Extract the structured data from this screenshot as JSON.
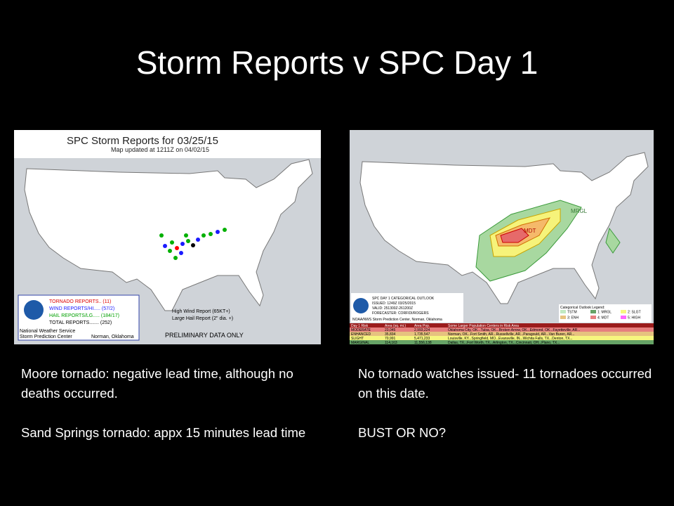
{
  "title": "Storm Reports v SPC Day 1",
  "left_panel": {
    "map": {
      "title": "SPC Storm Reports for 03/25/15",
      "subtitle": "Map updated at 1211Z on 04/02/15",
      "legend": [
        "TORNADO REPORTS.. (11)",
        "WIND REPORTS/HI..... (57/2)",
        "HAIL REPORTS/LG..... (184/17)",
        "TOTAL REPORTS....... (252)"
      ],
      "key": [
        "High Wind Report (65KT+)",
        "Large Hail Report (2\" dia. +)"
      ],
      "footer": [
        "National Weather Service",
        "Storm Prediction Center",
        "Norman, Oklahoma",
        "PRELIMINARY DATA ONLY"
      ]
    },
    "notes": [
      "Moore tornado: negative lead time, although no deaths occurred.",
      "Sand Springs tornado: appx 15 minutes lead time"
    ]
  },
  "right_panel": {
    "map": {
      "header": [
        "SPC DAY 1 CATEGORICAL OUTLOOK",
        "ISSUED: 1249Z 03/25/2015",
        "VALID: 251300Z-261200Z",
        "FORECASTER: CORFIDI/ROGERS",
        "NOAA/NWS Storm Prediction Center, Norman, Oklahoma"
      ],
      "labels": [
        "MRGL",
        "MDT"
      ],
      "legend_title": "Categorical Outlook Legend:",
      "legend": [
        "TSTM",
        "1: MRGL",
        "2: SLGT",
        "3: ENH",
        "4: MDT",
        "5: HIGH"
      ],
      "table": {
        "header": [
          "Day 1 Risk",
          "Area (sq. mi.)",
          "Area Pop.",
          "Some Larger Population Centers in Risk Area"
        ],
        "rows": [
          [
            "MODERATE",
            "23,045",
            "2,993,224",
            "Oklahoma City, OK...Tulsa, OK...Broken Arrow, OK...Edmond, OK...Fayetteville, AR..."
          ],
          [
            "ENHANCED",
            "35,834",
            "1,735,547",
            "Norman, OK...Fort Smith, AR...Russellville, AR...Paragould, AR...Van Buren, AR..."
          ],
          [
            "SLIGHT",
            "70,991",
            "5,471,233",
            "Louisville, KY...Springfield, MO...Evansville, IN...Wichita Falls, TX...Denton, TX..."
          ],
          [
            "MARGINAL",
            "114,163",
            "11,556,138",
            "Dallas, TX...Fort Worth, TX...Arlington, TX...Cincinnati, OH...Plano, TX..."
          ]
        ]
      }
    },
    "notes": [
      "No tornado watches issued- 11 tornadoes occurred on this date.",
      "BUST OR NO?"
    ]
  }
}
